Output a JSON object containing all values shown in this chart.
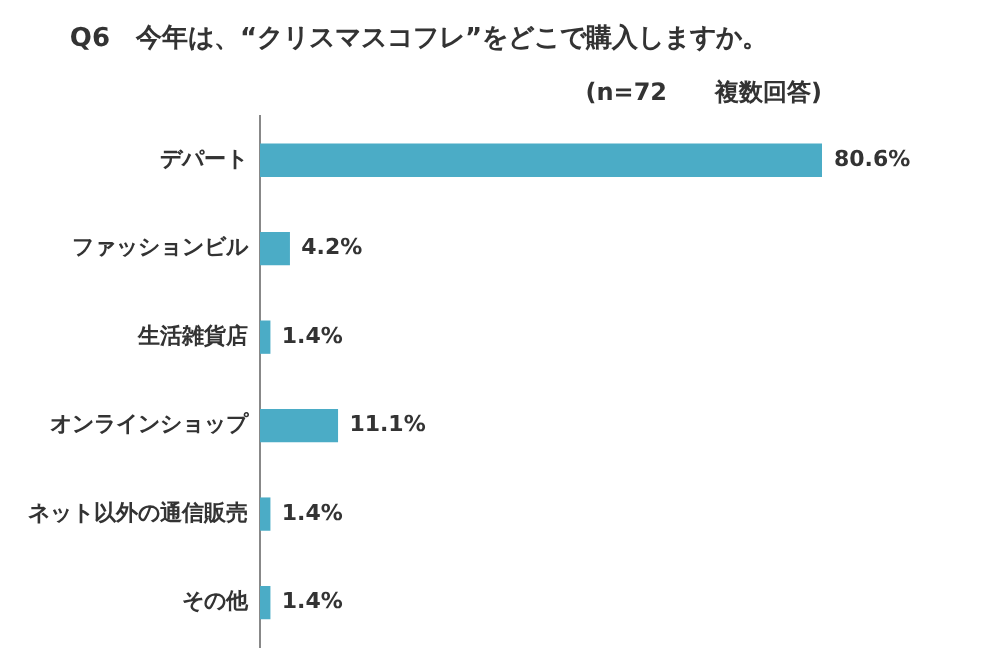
{
  "chart_data": {
    "type": "bar",
    "orientation": "horizontal",
    "title": "Q6　今年は、“クリスマスコフレ”をどこで購入しますか。",
    "subtitle": "(n=72　　複数回答)",
    "categories": [
      "デパート",
      "ファッションビル",
      "生活雑貨店",
      "オンラインショップ",
      "ネット以外の通信販売",
      "その他"
    ],
    "values": [
      80.6,
      4.2,
      1.4,
      11.1,
      1.4,
      1.4
    ],
    "value_labels": [
      "80.6%",
      "4.2%",
      "1.4%",
      "11.1%",
      "1.4%",
      "1.4%"
    ],
    "color": "#4bacc6"
  }
}
